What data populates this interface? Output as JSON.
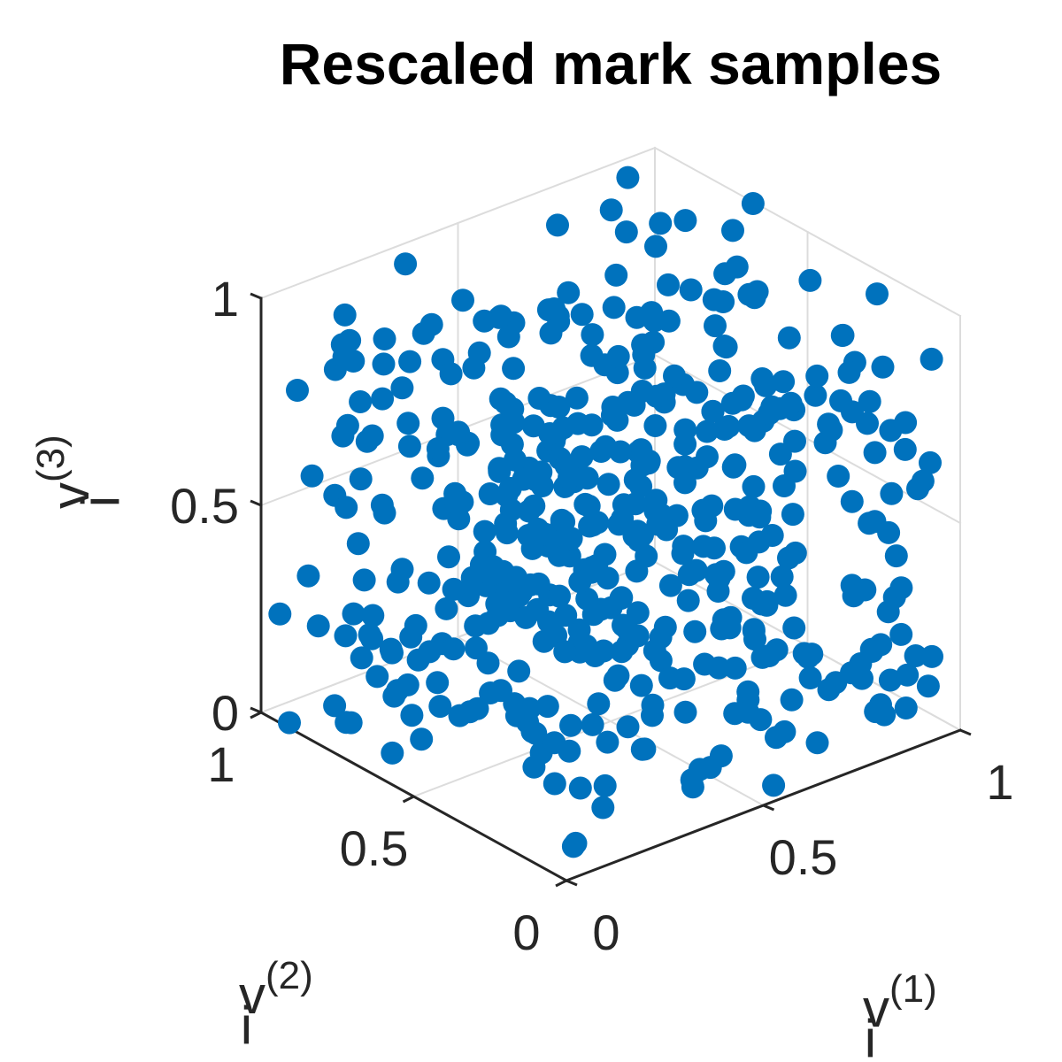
{
  "chart_data": {
    "type": "scatter",
    "view": "3d-isometric",
    "title": "Rescaled mark samples",
    "axes": [
      {
        "name": "v_i^(1)",
        "label_base": "v",
        "label_sub": "i",
        "label_sup": "(1)",
        "range": [
          0,
          1
        ],
        "ticks": [
          0,
          0.5,
          1
        ],
        "tick_labels": [
          "0",
          "0.5",
          "1"
        ]
      },
      {
        "name": "v_i^(2)",
        "label_base": "v",
        "label_sub": "i",
        "label_sup": "(2)",
        "range": [
          0,
          1
        ],
        "ticks": [
          0,
          0.5,
          1
        ],
        "tick_labels": [
          "0",
          "0.5",
          "1"
        ]
      },
      {
        "name": "v_i^(3)",
        "label_base": "v",
        "label_sub": "i",
        "label_sup": "(3)",
        "range": [
          0,
          1
        ],
        "ticks": [
          0,
          0.5,
          1
        ],
        "tick_labels": [
          "0",
          "0.5",
          "1"
        ]
      }
    ],
    "grid": true,
    "box": "back-panels",
    "marker_color": "#0072BD",
    "point_count": 500,
    "distribution": "uniform on unit cube",
    "series": []
  }
}
